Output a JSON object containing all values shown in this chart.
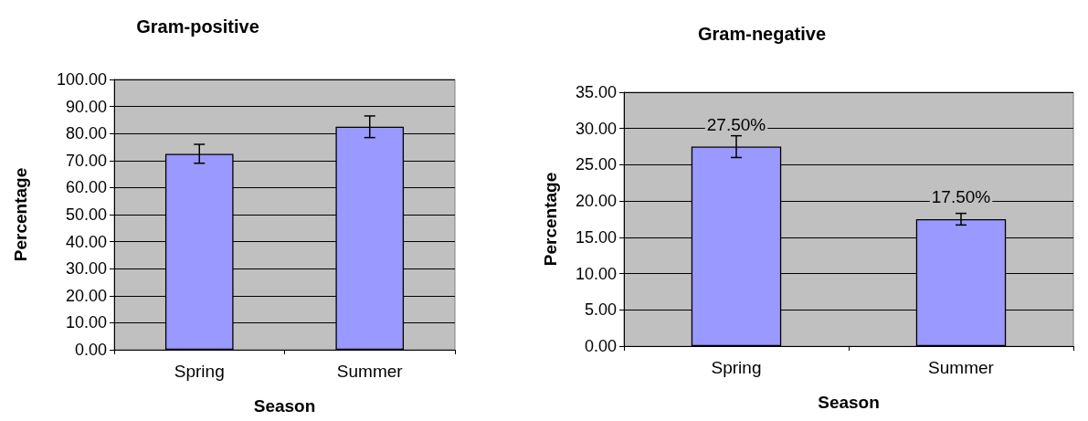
{
  "chart_data": [
    {
      "type": "bar",
      "title": "Gram-positive",
      "xlabel": "Season",
      "ylabel": "Percentage",
      "categories": [
        "Spring",
        "Summer"
      ],
      "values": [
        72.5,
        82.5
      ],
      "errors": [
        3.5,
        4
      ],
      "color": "#9999ff",
      "ylim": [
        0,
        100
      ],
      "yticks": [
        {
          "value": 0,
          "label": "0.00"
        },
        {
          "value": 10,
          "label": "10.00"
        },
        {
          "value": 20,
          "label": "20.00"
        },
        {
          "value": 30,
          "label": "30.00"
        },
        {
          "value": 40,
          "label": "40.00"
        },
        {
          "value": 50,
          "label": "50.00"
        },
        {
          "value": 60,
          "label": "60.00"
        },
        {
          "value": 70,
          "label": "70.00"
        },
        {
          "value": 80,
          "label": "80.00"
        },
        {
          "value": 90,
          "label": "90.00"
        },
        {
          "value": 100,
          "label": "100.00"
        }
      ],
      "grid": "y"
    },
    {
      "type": "bar",
      "title": "Gram-negative",
      "xlabel": "Season",
      "ylabel": "Percentage",
      "categories": [
        "Spring",
        "Summer"
      ],
      "values": [
        27.5,
        17.5
      ],
      "errors": [
        1.5,
        0.8
      ],
      "value_labels": [
        "27.50%",
        "17.50%"
      ],
      "color": "#9999ff",
      "ylim": [
        0,
        35
      ],
      "yticks": [
        {
          "value": 0,
          "label": "0.00"
        },
        {
          "value": 5,
          "label": "5.00"
        },
        {
          "value": 10,
          "label": "10.00"
        },
        {
          "value": 15,
          "label": "15.00"
        },
        {
          "value": 20,
          "label": "20.00"
        },
        {
          "value": 25,
          "label": "25.00"
        },
        {
          "value": 30,
          "label": "30.00"
        },
        {
          "value": 35,
          "label": "35.00"
        }
      ],
      "grid": "y"
    }
  ]
}
